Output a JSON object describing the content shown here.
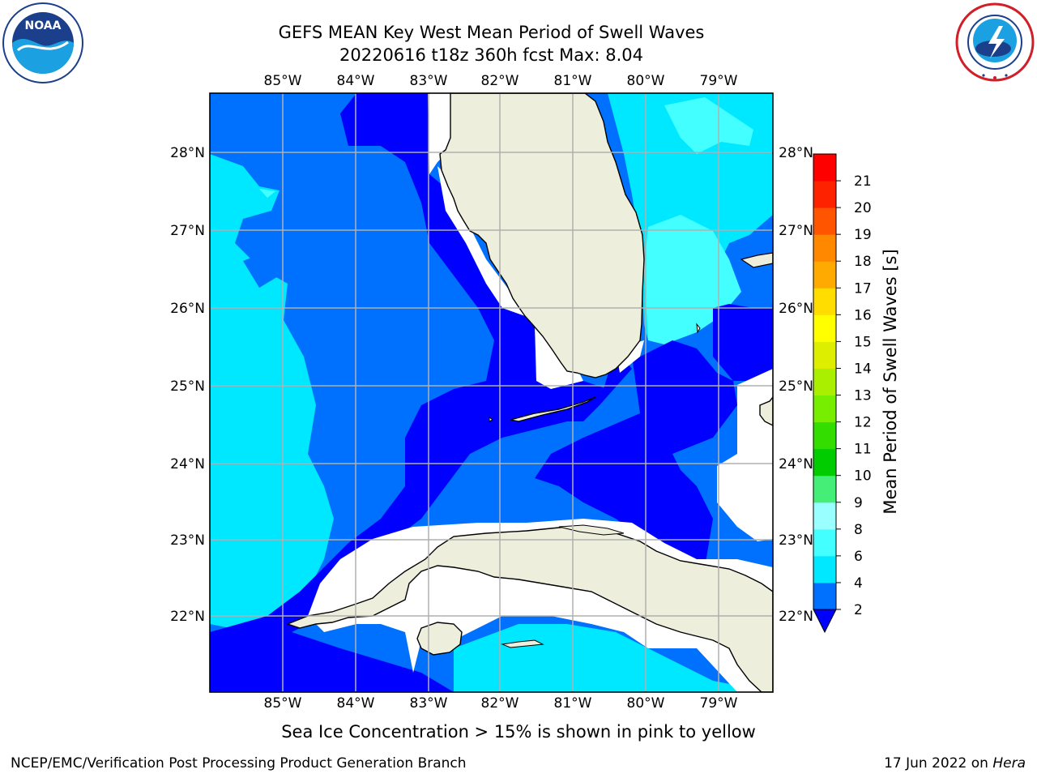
{
  "header": {
    "title_line1": "GEFS MEAN Key West Mean Period of Swell Waves",
    "title_line2": "20220616 t18z 360h fcst   Max: 8.04"
  },
  "logos": {
    "left": {
      "icon": "noaa-logo-icon",
      "text": "NOAA",
      "ring_text": "NATIONAL OCEANIC AND ATMOSPHERIC ADMINISTRATION · U.S. DEPARTMENT OF COMMERCE"
    },
    "right": {
      "icon": "nws-logo-icon",
      "ring_text": "NATIONAL WEATHER SERVICE"
    }
  },
  "map": {
    "projection": "lat-lon",
    "longitude_ticks": [
      "85°W",
      "84°W",
      "83°W",
      "82°W",
      "81°W",
      "80°W",
      "79°W"
    ],
    "latitude_ticks": [
      "28°N",
      "27°N",
      "26°N",
      "25°N",
      "24°N",
      "23°N",
      "22°N"
    ],
    "lon_range": [
      -86.0,
      -78.3
    ],
    "lat_range": [
      21.0,
      28.8
    ],
    "grid": true,
    "land_color": "#eeeedd",
    "coast_color": "#000000",
    "regions": [
      "Florida peninsula",
      "Florida Keys",
      "Cuba",
      "Isla de la Juventud",
      "Andros Island"
    ]
  },
  "colorbar": {
    "label": "Mean Period of Swell Waves [s]",
    "ticks": [
      "21",
      "20",
      "19",
      "18",
      "17",
      "16",
      "15",
      "14",
      "13",
      "12",
      "11",
      "10",
      "9",
      "8",
      "6",
      "4",
      "2"
    ],
    "levels": [
      2,
      4,
      6,
      8,
      9,
      10,
      11,
      12,
      13,
      14,
      15,
      16,
      17,
      18,
      19,
      20,
      21
    ],
    "colors": [
      "#0000ff",
      "#0070ff",
      "#00e8ff",
      "#44ffff",
      "#99ffff",
      "#44ee77",
      "#00cc00",
      "#33dd00",
      "#77ee00",
      "#aaee00",
      "#ddee00",
      "#ffff00",
      "#ffdd00",
      "#ffaa00",
      "#ff8800",
      "#ff5500",
      "#ff2200",
      "#ff0000"
    ],
    "extend": "min"
  },
  "footer": {
    "sea_ice_note": "Sea Ice Concentration > 15% is shown in pink to yellow",
    "left": "NCEP/EMC/Verification Post Processing Product Generation Branch",
    "right_date": "17 Jun 2022 on ",
    "right_host": "Hera"
  }
}
